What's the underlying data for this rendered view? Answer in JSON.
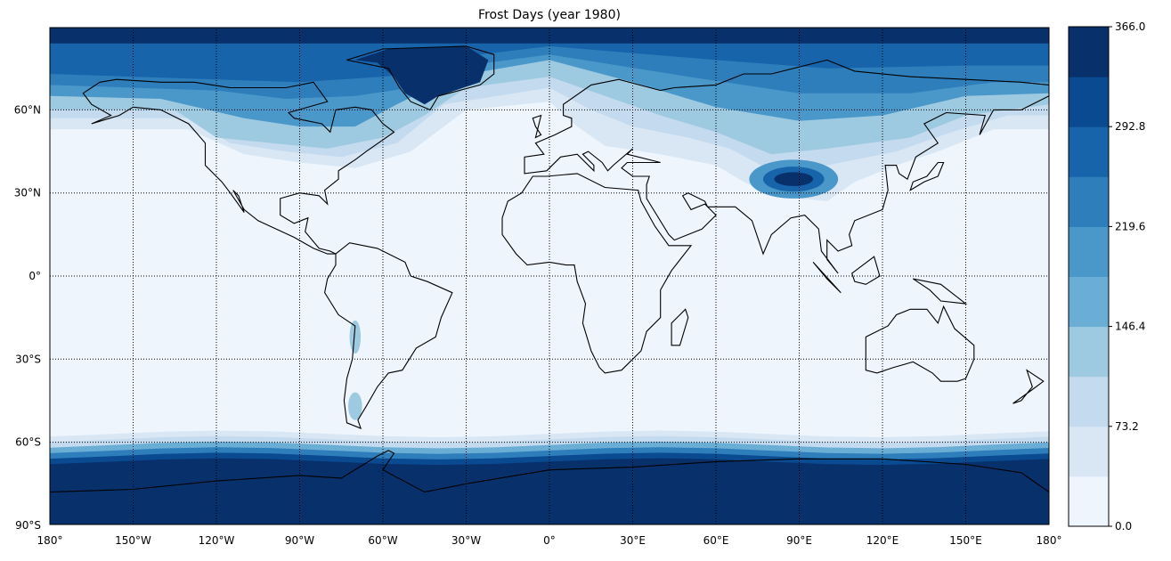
{
  "map": {
    "title": "Frost Days (year 1980)",
    "parallels": [
      {
        "value": -90,
        "label": "90°S"
      },
      {
        "value": -60,
        "label": "60°S"
      },
      {
        "value": -30,
        "label": "30°S"
      },
      {
        "value": 0,
        "label": "0°"
      },
      {
        "value": 30,
        "label": "30°N"
      },
      {
        "value": 60,
        "label": "60°N"
      }
    ],
    "meridians": [
      {
        "value": -180,
        "label": "180°"
      },
      {
        "value": -150,
        "label": "150°W"
      },
      {
        "value": -120,
        "label": "120°W"
      },
      {
        "value": -90,
        "label": "90°W"
      },
      {
        "value": -60,
        "label": "60°W"
      },
      {
        "value": -30,
        "label": "30°W"
      },
      {
        "value": 0,
        "label": "0°"
      },
      {
        "value": 30,
        "label": "30°E"
      },
      {
        "value": 60,
        "label": "60°E"
      },
      {
        "value": 90,
        "label": "90°E"
      },
      {
        "value": 120,
        "label": "120°E"
      },
      {
        "value": 150,
        "label": "150°E"
      },
      {
        "value": 180,
        "label": "180°"
      }
    ],
    "grid": true
  },
  "colorbar": {
    "range": [
      0,
      366
    ],
    "ticks": [
      {
        "value": 0,
        "label": "0.0"
      },
      73.2,
      146.4,
      219.6,
      292.8,
      {
        "value": 366,
        "label": "366.0"
      }
    ],
    "colors": [
      "#eef5fc",
      "#d9e7f5",
      "#c4daee",
      "#9ecae1",
      "#6aaed6",
      "#4a97c9",
      "#2e7ebc",
      "#1764ab",
      "#0a4a90",
      "#08306b"
    ]
  }
}
